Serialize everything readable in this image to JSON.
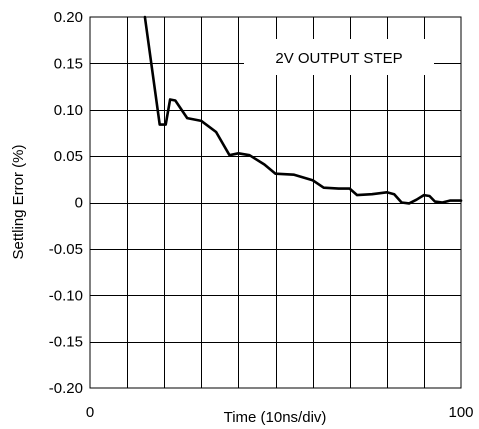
{
  "chart_data": {
    "type": "line",
    "title": "",
    "annotation": "2V OUTPUT STEP",
    "xlabel": "Time (10ns/div)",
    "ylabel": "Settling Error (%)",
    "xlim": [
      0,
      100
    ],
    "ylim": [
      -0.2,
      0.2
    ],
    "x_tick_labels": [
      "0",
      "100"
    ],
    "x_tick_values": [
      0,
      100
    ],
    "y_tick_labels": [
      "0.20",
      "0.15",
      "0.10",
      "0.05",
      "0",
      "-0.05",
      "-0.10",
      "-0.15",
      "-0.20"
    ],
    "y_tick_values": [
      0.2,
      0.15,
      0.1,
      0.05,
      0,
      -0.05,
      -0.1,
      -0.15,
      -0.2
    ],
    "x_grid_values": [
      10,
      20,
      30,
      40,
      50,
      60,
      70,
      80,
      90
    ],
    "y_grid_values": [
      0.15,
      0.1,
      0.05,
      0,
      -0.05,
      -0.1,
      -0.15
    ],
    "grid": true,
    "series": [
      {
        "points": [
          [
            14.8,
            0.2
          ],
          [
            18.8,
            0.084
          ],
          [
            20.4,
            0.084
          ],
          [
            21.6,
            0.111
          ],
          [
            23.0,
            0.11
          ],
          [
            26.2,
            0.091
          ],
          [
            30.0,
            0.088
          ],
          [
            34.0,
            0.076
          ],
          [
            37.6,
            0.051
          ],
          [
            40.0,
            0.053
          ],
          [
            43.0,
            0.051
          ],
          [
            47.0,
            0.041
          ],
          [
            50.0,
            0.031
          ],
          [
            55.0,
            0.03
          ],
          [
            60.0,
            0.024
          ],
          [
            63.0,
            0.016
          ],
          [
            67.0,
            0.015
          ],
          [
            70.0,
            0.015
          ],
          [
            72.0,
            0.008
          ],
          [
            76.0,
            0.009
          ],
          [
            80.0,
            0.011
          ],
          [
            82.0,
            0.009
          ],
          [
            84.0,
            0.0
          ],
          [
            86.0,
            -0.001
          ],
          [
            88.0,
            0.003
          ],
          [
            90.0,
            0.008
          ],
          [
            91.5,
            0.007
          ],
          [
            93.0,
            0.001
          ],
          [
            95.0,
            0.0
          ],
          [
            97.0,
            0.002
          ],
          [
            100.0,
            0.002
          ]
        ]
      }
    ]
  }
}
